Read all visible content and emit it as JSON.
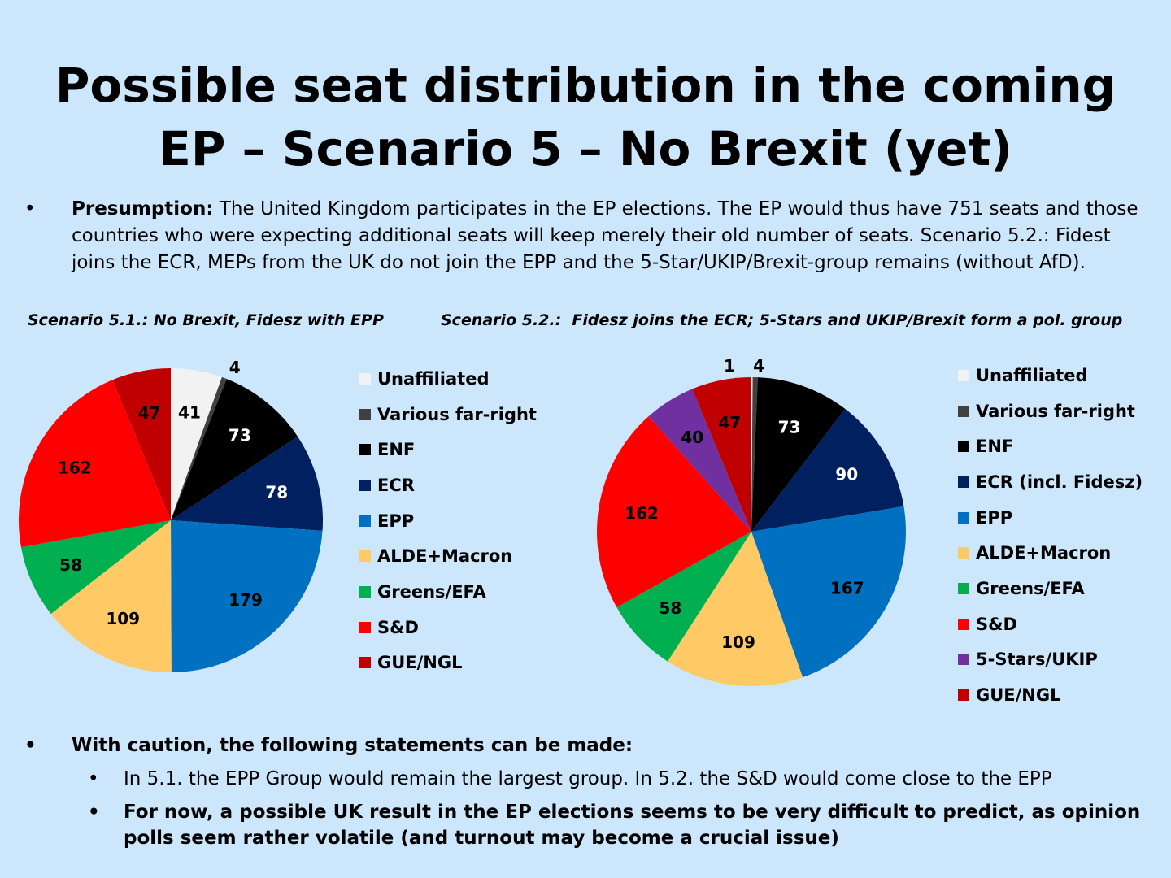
{
  "title_line1": "Possible seat distribution in the coming",
  "title_line2": "EP – Scenario 5 – No Brexit (yet)",
  "bullet_char": "•",
  "presumption_label": "Presumption:",
  "presumption_text": " The United Kingdom participates in the EP elections. The EP would thus have 751 seats and those countries who were expecting additional seats will keep merely their old number of seats. Scenario 5.2.: Fidest joins the ECR, MEPs from the UK do not join the EPP and the 5-Star/UKIP/Brexit-group remains (without AfD).",
  "caution_heading": "With caution, the following statements can be made:",
  "statements": [
    "In 5.1. the EPP Group would remain the largest group. In 5.2. the S&D would come close to the EPP",
    "For now, a possible UK result in the EP elections seems to be very difficult to predict, as opinion polls seem rather volatile (and turnout may become a crucial issue)"
  ],
  "chart_data": [
    {
      "type": "pie",
      "title": "Scenario 5.1.: No Brexit, Fidesz with EPP",
      "categories": [
        "Unaffiliated",
        "Various far-right",
        "ENF",
        "ECR",
        "EPP",
        "ALDE+Macron",
        "Greens/EFA",
        "S&D",
        "GUE/NGL"
      ],
      "values": [
        41,
        4,
        73,
        78,
        179,
        109,
        58,
        162,
        47
      ],
      "colors": [
        "#f2f2f2",
        "#404040",
        "#000000",
        "#002060",
        "#0070c0",
        "#ffc966",
        "#00b050",
        "#ff0000",
        "#c00000"
      ],
      "label_colors": [
        "#000",
        "#000",
        "#fff",
        "#fff",
        "#000",
        "#000",
        "#000",
        "#000",
        "#000"
      ],
      "legend_placement": "right"
    },
    {
      "type": "pie",
      "title": "Scenario 5.2.:  Fidesz joins the ECR; 5-Stars and UKIP/Brexit form a pol. group",
      "categories": [
        "Unaffiliated",
        "Various far-right",
        "ENF",
        "ECR (incl. Fidesz)",
        "EPP",
        "ALDE+Macron",
        "Greens/EFA",
        "S&D",
        "5-Stars/UKIP",
        "GUE/NGL"
      ],
      "values": [
        1,
        4,
        73,
        90,
        167,
        109,
        58,
        162,
        40,
        47
      ],
      "colors": [
        "#f2f2f2",
        "#404040",
        "#000000",
        "#002060",
        "#0070c0",
        "#ffc966",
        "#00b050",
        "#ff0000",
        "#7030a0",
        "#c00000"
      ],
      "label_colors": [
        "#000",
        "#000",
        "#fff",
        "#fff",
        "#000",
        "#000",
        "#000",
        "#000",
        "#000",
        "#000"
      ],
      "legend_placement": "right"
    }
  ]
}
